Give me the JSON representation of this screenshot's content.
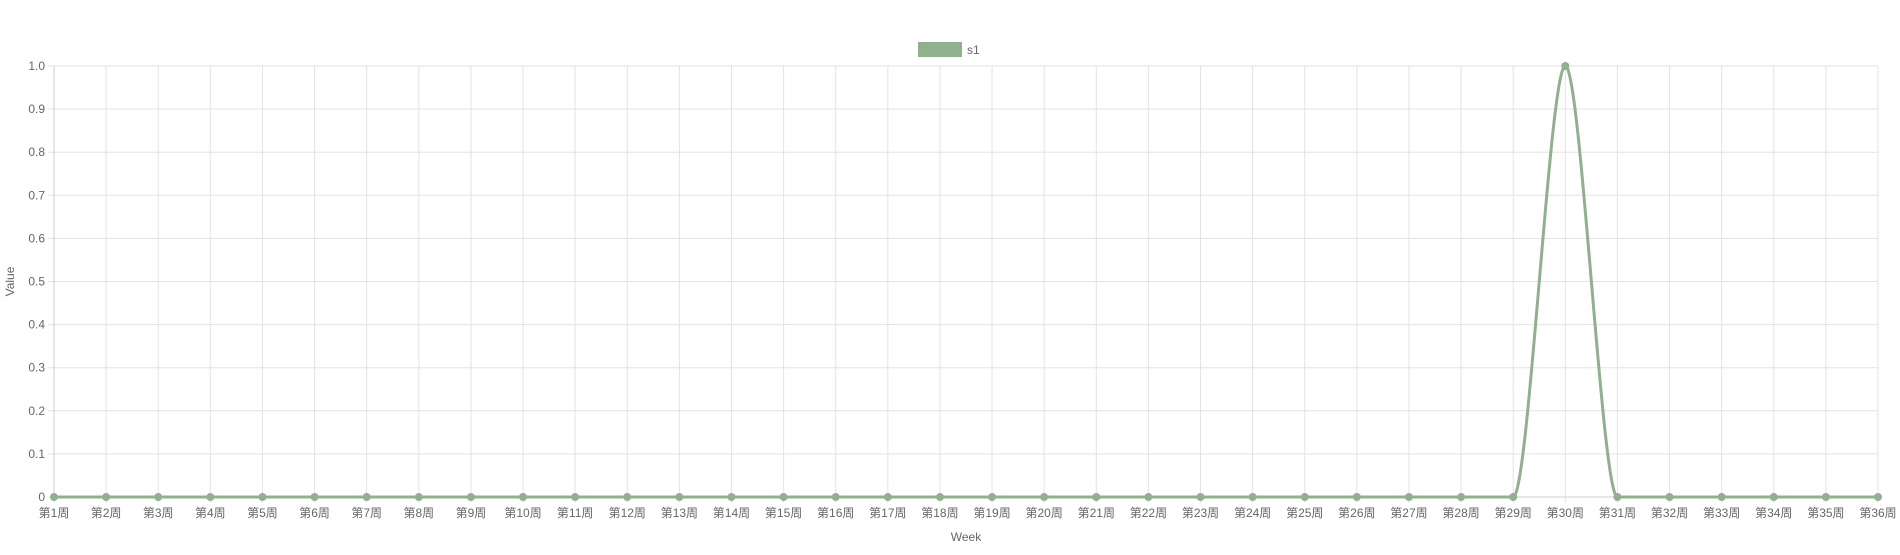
{
  "chart_data": {
    "type": "line",
    "categories": [
      "第1周",
      "第2周",
      "第3周",
      "第4周",
      "第5周",
      "第6周",
      "第7周",
      "第8周",
      "第9周",
      "第10周",
      "第11周",
      "第12周",
      "第13周",
      "第14周",
      "第15周",
      "第16周",
      "第17周",
      "第18周",
      "第19周",
      "第20周",
      "第21周",
      "第22周",
      "第23周",
      "第24周",
      "第25周",
      "第26周",
      "第27周",
      "第28周",
      "第29周",
      "第30周",
      "第31周",
      "第32周",
      "第33周",
      "第34周",
      "第35周",
      "第36周"
    ],
    "series": [
      {
        "name": "s1",
        "color": "#90b08e",
        "values": [
          0,
          0,
          0,
          0,
          0,
          0,
          0,
          0,
          0,
          0,
          0,
          0,
          0,
          0,
          0,
          0,
          0,
          0,
          0,
          0,
          0,
          0,
          0,
          0,
          0,
          0,
          0,
          0,
          0,
          1,
          0,
          0,
          0,
          0,
          0,
          0
        ]
      }
    ],
    "title": "",
    "xlabel": "Week",
    "ylabel": "Value",
    "ylim": [
      0,
      1
    ],
    "yticks": [
      "0",
      "0.1",
      "0.2",
      "0.3",
      "0.4",
      "0.5",
      "0.6",
      "0.7",
      "0.8",
      "0.9",
      "1.0"
    ],
    "grid": true,
    "legend": "top-center",
    "smooth": true
  }
}
